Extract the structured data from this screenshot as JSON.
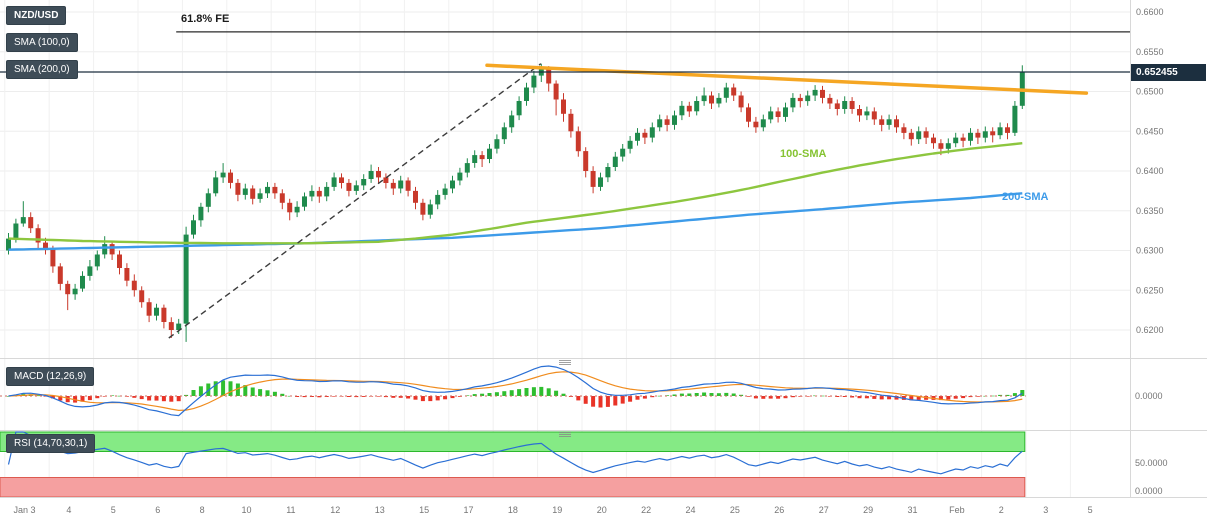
{
  "header": {
    "symbol": "NZD/USD",
    "sma100_label": "SMA (100,0)",
    "sma200_label": "SMA (200,0)"
  },
  "annotations": {
    "fib_extension_label": "61.8% FE",
    "sma100_line_label": "100-SMA",
    "sma200_line_label": "200-SMA"
  },
  "price_axis": {
    "current_price_label": "0.652455",
    "ticks": [
      0.66,
      0.655,
      0.65,
      0.645,
      0.64,
      0.635,
      0.63,
      0.625,
      0.62
    ]
  },
  "time_axis": {
    "labels": [
      "Jan 3",
      "4",
      "5",
      "6",
      "8",
      "10",
      "11",
      "12",
      "13",
      "15",
      "17",
      "18",
      "19",
      "20",
      "22",
      "24",
      "25",
      "26",
      "27",
      "29",
      "31",
      "Feb",
      "2",
      "3",
      "5"
    ]
  },
  "macd_panel": {
    "label": "MACD (12,26,9)",
    "zero_label": "0.0000"
  },
  "rsi_panel": {
    "label": "RSI (14,70,30,1)",
    "mid_label": "50.0000",
    "zero_label": "0.0000"
  },
  "colors": {
    "up_candle": "#1f8a4c",
    "down_candle": "#c9392b",
    "sma100": "#8dc63f",
    "sma200": "#3d9be9",
    "trendline": "#f5a623",
    "dashed_line": "#3c3c3c",
    "fib_line": "#2b2b2b",
    "current_price_line": "#1c2f3f",
    "macd_line": "#2a6fd4",
    "macd_signal": "#f08c1e",
    "macd_zero": "#cf6a5f",
    "hist_pos": "#2fbe2f",
    "hist_neg": "#e93327",
    "rsi_line": "#2a6fd4",
    "overbought_fill": "#85ea85",
    "overbought_border": "#2db82d",
    "oversold_fill": "#f5a0a0",
    "oversold_border": "#dd5a50",
    "grid": "#ededed",
    "grid_vertical": "#f1f1f1",
    "separator": "#d8d8d8",
    "axis_text": "#757575"
  },
  "chart_data": {
    "type": "candlestick",
    "symbol": "NZD/USD",
    "title": "NZD/USD price chart with SMA(100), SMA(200), MACD(12,26,9), RSI(14,70,30,1)",
    "ylim": [
      0.6165,
      0.6615
    ],
    "current_price": 0.652455,
    "fib_extension": {
      "label": "61.8% FE",
      "price": 0.6575
    },
    "trendline": {
      "start_index": 65,
      "start_price": 0.6533,
      "end_index": 146,
      "end_price": 0.6498
    },
    "dashed_line": {
      "start_index": 22,
      "start_price": 0.619,
      "end_index": 72,
      "end_price": 0.6535
    },
    "indicators": {
      "macd": [
        12,
        26,
        9
      ],
      "rsi": [
        14,
        70,
        30,
        1
      ]
    },
    "sma100_points": [
      [
        0,
        0.6315
      ],
      [
        10,
        0.6312
      ],
      [
        20,
        0.631
      ],
      [
        30,
        0.6309
      ],
      [
        40,
        0.6309
      ],
      [
        50,
        0.6311
      ],
      [
        55,
        0.6315
      ],
      [
        60,
        0.632
      ],
      [
        65,
        0.6327
      ],
      [
        70,
        0.6335
      ],
      [
        75,
        0.6341
      ],
      [
        80,
        0.6347
      ],
      [
        85,
        0.6354
      ],
      [
        90,
        0.6361
      ],
      [
        95,
        0.6369
      ],
      [
        100,
        0.6378
      ],
      [
        105,
        0.6388
      ],
      [
        110,
        0.6398
      ],
      [
        115,
        0.6407
      ],
      [
        120,
        0.6415
      ],
      [
        125,
        0.6422
      ],
      [
        130,
        0.6428
      ],
      [
        134,
        0.6432
      ],
      [
        137,
        0.6435
      ]
    ],
    "sma200_points": [
      [
        0,
        0.6301
      ],
      [
        20,
        0.6305
      ],
      [
        40,
        0.6309
      ],
      [
        60,
        0.6316
      ],
      [
        80,
        0.6328
      ],
      [
        100,
        0.6345
      ],
      [
        110,
        0.6352
      ],
      [
        120,
        0.636
      ],
      [
        130,
        0.6366
      ],
      [
        137,
        0.6372
      ]
    ],
    "candles": [
      [
        0.63,
        0.6322,
        0.6295,
        0.6315
      ],
      [
        0.6315,
        0.634,
        0.631,
        0.6334
      ],
      [
        0.6334,
        0.6362,
        0.633,
        0.6342
      ],
      [
        0.6342,
        0.6348,
        0.6322,
        0.6328
      ],
      [
        0.6328,
        0.6333,
        0.6302,
        0.631
      ],
      [
        0.631,
        0.6316,
        0.6295,
        0.6302
      ],
      [
        0.6302,
        0.6306,
        0.6272,
        0.628
      ],
      [
        0.628,
        0.6284,
        0.625,
        0.6258
      ],
      [
        0.6258,
        0.6262,
        0.6225,
        0.6245
      ],
      [
        0.6245,
        0.6258,
        0.6238,
        0.6252
      ],
      [
        0.6252,
        0.6274,
        0.6248,
        0.6268
      ],
      [
        0.6268,
        0.6288,
        0.6262,
        0.628
      ],
      [
        0.628,
        0.63,
        0.6275,
        0.6295
      ],
      [
        0.6295,
        0.6318,
        0.629,
        0.6308
      ],
      [
        0.6308,
        0.6312,
        0.6288,
        0.6295
      ],
      [
        0.6295,
        0.63,
        0.627,
        0.6278
      ],
      [
        0.6278,
        0.6284,
        0.6255,
        0.6262
      ],
      [
        0.6262,
        0.627,
        0.6242,
        0.625
      ],
      [
        0.625,
        0.6255,
        0.6228,
        0.6235
      ],
      [
        0.6235,
        0.624,
        0.621,
        0.6218
      ],
      [
        0.6218,
        0.6233,
        0.6212,
        0.6228
      ],
      [
        0.6228,
        0.6232,
        0.6202,
        0.621
      ],
      [
        0.621,
        0.6216,
        0.619,
        0.62
      ],
      [
        0.62,
        0.6214,
        0.6195,
        0.6208
      ],
      [
        0.6208,
        0.633,
        0.6185,
        0.632
      ],
      [
        0.632,
        0.6345,
        0.6315,
        0.6338
      ],
      [
        0.6338,
        0.636,
        0.633,
        0.6355
      ],
      [
        0.6355,
        0.6378,
        0.6348,
        0.6372
      ],
      [
        0.6372,
        0.64,
        0.6368,
        0.6392
      ],
      [
        0.6392,
        0.641,
        0.6385,
        0.6398
      ],
      [
        0.6398,
        0.6402,
        0.6378,
        0.6385
      ],
      [
        0.6385,
        0.639,
        0.6362,
        0.637
      ],
      [
        0.637,
        0.6384,
        0.6364,
        0.6378
      ],
      [
        0.6378,
        0.6382,
        0.6358,
        0.6365
      ],
      [
        0.6365,
        0.6378,
        0.636,
        0.6372
      ],
      [
        0.6372,
        0.6386,
        0.6366,
        0.638
      ],
      [
        0.638,
        0.6385,
        0.6365,
        0.6372
      ],
      [
        0.6372,
        0.6377,
        0.6352,
        0.636
      ],
      [
        0.636,
        0.6365,
        0.6338,
        0.6348
      ],
      [
        0.6348,
        0.6362,
        0.6342,
        0.6355
      ],
      [
        0.6355,
        0.6373,
        0.635,
        0.6368
      ],
      [
        0.6368,
        0.6382,
        0.6362,
        0.6375
      ],
      [
        0.6375,
        0.638,
        0.636,
        0.6368
      ],
      [
        0.6368,
        0.6386,
        0.6362,
        0.638
      ],
      [
        0.638,
        0.6398,
        0.6375,
        0.6392
      ],
      [
        0.6392,
        0.6397,
        0.6378,
        0.6385
      ],
      [
        0.6385,
        0.639,
        0.6368,
        0.6375
      ],
      [
        0.6375,
        0.6388,
        0.637,
        0.6382
      ],
      [
        0.6382,
        0.6396,
        0.6376,
        0.639
      ],
      [
        0.639,
        0.6408,
        0.6385,
        0.64
      ],
      [
        0.64,
        0.6405,
        0.6385,
        0.6392
      ],
      [
        0.6392,
        0.6397,
        0.6378,
        0.6385
      ],
      [
        0.6385,
        0.639,
        0.637,
        0.6378
      ],
      [
        0.6378,
        0.6394,
        0.6372,
        0.6388
      ],
      [
        0.6388,
        0.6392,
        0.6368,
        0.6375
      ],
      [
        0.6375,
        0.638,
        0.6352,
        0.636
      ],
      [
        0.636,
        0.6365,
        0.6338,
        0.6345
      ],
      [
        0.6345,
        0.6364,
        0.634,
        0.6358
      ],
      [
        0.6358,
        0.6376,
        0.6352,
        0.637
      ],
      [
        0.637,
        0.6384,
        0.6364,
        0.6378
      ],
      [
        0.6378,
        0.6394,
        0.6372,
        0.6388
      ],
      [
        0.6388,
        0.6404,
        0.6382,
        0.6398
      ],
      [
        0.6398,
        0.6416,
        0.6392,
        0.641
      ],
      [
        0.641,
        0.6426,
        0.6404,
        0.642
      ],
      [
        0.642,
        0.6425,
        0.6405,
        0.6415
      ],
      [
        0.6415,
        0.6434,
        0.641,
        0.6428
      ],
      [
        0.6428,
        0.6446,
        0.6422,
        0.644
      ],
      [
        0.644,
        0.6461,
        0.6434,
        0.6455
      ],
      [
        0.6455,
        0.6476,
        0.6448,
        0.647
      ],
      [
        0.647,
        0.6494,
        0.6464,
        0.6488
      ],
      [
        0.6488,
        0.6511,
        0.6482,
        0.6505
      ],
      [
        0.6505,
        0.6526,
        0.6498,
        0.652
      ],
      [
        0.652,
        0.6535,
        0.6512,
        0.6528
      ],
      [
        0.6528,
        0.6532,
        0.65,
        0.651
      ],
      [
        0.651,
        0.6514,
        0.647,
        0.649
      ],
      [
        0.649,
        0.6498,
        0.6462,
        0.6472
      ],
      [
        0.6472,
        0.6478,
        0.6442,
        0.645
      ],
      [
        0.645,
        0.6456,
        0.6418,
        0.6425
      ],
      [
        0.6425,
        0.643,
        0.6392,
        0.64
      ],
      [
        0.64,
        0.6406,
        0.6372,
        0.638
      ],
      [
        0.638,
        0.6398,
        0.6375,
        0.6392
      ],
      [
        0.6392,
        0.641,
        0.6386,
        0.6405
      ],
      [
        0.6405,
        0.6424,
        0.64,
        0.6418
      ],
      [
        0.6418,
        0.6434,
        0.6412,
        0.6428
      ],
      [
        0.6428,
        0.6444,
        0.6422,
        0.6438
      ],
      [
        0.6438,
        0.6454,
        0.6432,
        0.6448
      ],
      [
        0.6448,
        0.6453,
        0.6434,
        0.6442
      ],
      [
        0.6442,
        0.6461,
        0.6436,
        0.6455
      ],
      [
        0.6455,
        0.6471,
        0.645,
        0.6465
      ],
      [
        0.6465,
        0.647,
        0.645,
        0.6458
      ],
      [
        0.6458,
        0.6476,
        0.6452,
        0.647
      ],
      [
        0.647,
        0.6488,
        0.6464,
        0.6482
      ],
      [
        0.6482,
        0.6487,
        0.6468,
        0.6475
      ],
      [
        0.6475,
        0.6494,
        0.647,
        0.6488
      ],
      [
        0.6488,
        0.6505,
        0.6482,
        0.6495
      ],
      [
        0.6495,
        0.65,
        0.6478,
        0.6485
      ],
      [
        0.6485,
        0.6498,
        0.648,
        0.6492
      ],
      [
        0.6492,
        0.6511,
        0.6486,
        0.6505
      ],
      [
        0.6505,
        0.651,
        0.6488,
        0.6495
      ],
      [
        0.6495,
        0.65,
        0.6474,
        0.648
      ],
      [
        0.648,
        0.6485,
        0.6455,
        0.6462
      ],
      [
        0.6462,
        0.6468,
        0.6448,
        0.6455
      ],
      [
        0.6455,
        0.6471,
        0.645,
        0.6465
      ],
      [
        0.6465,
        0.6481,
        0.646,
        0.6475
      ],
      [
        0.6475,
        0.648,
        0.6461,
        0.6468
      ],
      [
        0.6468,
        0.6486,
        0.6462,
        0.648
      ],
      [
        0.648,
        0.6498,
        0.6474,
        0.6492
      ],
      [
        0.6492,
        0.6497,
        0.648,
        0.6488
      ],
      [
        0.6488,
        0.6501,
        0.6482,
        0.6495
      ],
      [
        0.6495,
        0.6508,
        0.6488,
        0.6502
      ],
      [
        0.6502,
        0.6507,
        0.6485,
        0.6492
      ],
      [
        0.6492,
        0.6497,
        0.6478,
        0.6485
      ],
      [
        0.6485,
        0.649,
        0.647,
        0.6478
      ],
      [
        0.6478,
        0.6494,
        0.6472,
        0.6488
      ],
      [
        0.6488,
        0.6493,
        0.6472,
        0.6478
      ],
      [
        0.6478,
        0.6483,
        0.6462,
        0.647
      ],
      [
        0.647,
        0.6481,
        0.6464,
        0.6475
      ],
      [
        0.6475,
        0.648,
        0.6458,
        0.6465
      ],
      [
        0.6465,
        0.647,
        0.645,
        0.6458
      ],
      [
        0.6458,
        0.6471,
        0.6452,
        0.6465
      ],
      [
        0.6465,
        0.647,
        0.6448,
        0.6455
      ],
      [
        0.6455,
        0.646,
        0.644,
        0.6448
      ],
      [
        0.6448,
        0.6453,
        0.6432,
        0.644
      ],
      [
        0.644,
        0.6456,
        0.6434,
        0.645
      ],
      [
        0.645,
        0.6455,
        0.6434,
        0.6442
      ],
      [
        0.6442,
        0.6447,
        0.6428,
        0.6435
      ],
      [
        0.6435,
        0.644,
        0.642,
        0.6428
      ],
      [
        0.6428,
        0.6441,
        0.6422,
        0.6435
      ],
      [
        0.6435,
        0.6448,
        0.643,
        0.6442
      ],
      [
        0.6442,
        0.6447,
        0.643,
        0.6438
      ],
      [
        0.6438,
        0.6454,
        0.6432,
        0.6448
      ],
      [
        0.6448,
        0.6453,
        0.6434,
        0.6442
      ],
      [
        0.6442,
        0.6456,
        0.6436,
        0.645
      ],
      [
        0.645,
        0.6455,
        0.6436,
        0.6445
      ],
      [
        0.6445,
        0.6461,
        0.644,
        0.6455
      ],
      [
        0.6455,
        0.646,
        0.644,
        0.6448
      ],
      [
        0.6448,
        0.6488,
        0.6444,
        0.6482
      ],
      [
        0.6482,
        0.6533,
        0.6478,
        0.65245
      ]
    ]
  }
}
